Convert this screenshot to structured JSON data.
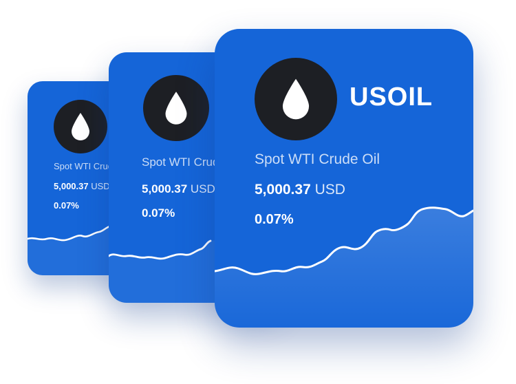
{
  "cards": [
    {
      "name": "Spot WTI Crude Oil",
      "price_value": "5,000.37",
      "price_currency": "USD",
      "change": "0.07%",
      "icon": "oil-drop-icon"
    },
    {
      "name": "Spot WTI Crude Oil",
      "price_value": "5,000.37",
      "price_currency": "USD",
      "change": "0.07%",
      "icon": "oil-drop-icon"
    },
    {
      "symbol": "USOIL",
      "name": "Spot WTI Crude Oil",
      "price_value": "5,000.37",
      "price_currency": "USD",
      "change": "0.07%",
      "icon": "oil-drop-icon"
    }
  ],
  "colors": {
    "card_background": "#1565d8",
    "icon_background": "#1d1f24",
    "text": "#ffffff"
  }
}
